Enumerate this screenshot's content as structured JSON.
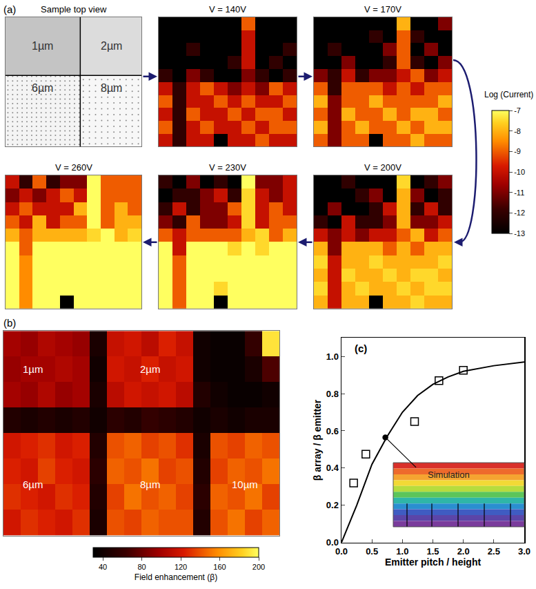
{
  "chart_data": [
    {
      "type": "heatmap",
      "label": "(a)",
      "tick_labels": false,
      "schematic": {
        "title": "Sample top view",
        "regions": [
          "1µm",
          "2µm",
          "6µm",
          "8µm"
        ]
      },
      "panels": [
        {
          "title": "V = 140V",
          "z": [
            [
              -13,
              -13,
              -13,
              -13,
              -13,
              -13,
              -9,
              -13,
              -13,
              -13
            ],
            [
              -13,
              -13,
              -13,
              -13,
              -13,
              -13,
              -10,
              -13,
              -13,
              -13
            ],
            [
              -13,
              -13,
              -12,
              -13,
              -13,
              -13,
              -10,
              -13,
              -13,
              -12
            ],
            [
              -13,
              -13,
              -13,
              -13,
              -13,
              -12,
              -10,
              -13,
              -12,
              -13
            ],
            [
              -12,
              -13,
              -11,
              -12,
              -13,
              -13,
              -11,
              -12,
              -13,
              -12
            ],
            [
              -10,
              -12,
              -10,
              -9,
              -10,
              -11,
              -10,
              -11,
              -9,
              -10
            ],
            [
              -9,
              -12,
              -10,
              -10,
              -9,
              -10,
              -9,
              -10,
              -10,
              -9
            ],
            [
              -10,
              -12,
              -9,
              -10,
              -10,
              -9,
              -10,
              -9,
              -9,
              -10
            ],
            [
              -9,
              -12,
              -10,
              -9,
              -10,
              -10,
              -9,
              -10,
              -9,
              -9
            ],
            [
              -10,
              -12,
              -10,
              -10,
              -13,
              -10,
              -10,
              -9,
              -10,
              -10
            ]
          ]
        },
        {
          "title": "V = 170V",
          "z": [
            [
              -13,
              -13,
              -13,
              -13,
              -13,
              -13,
              -8,
              -13,
              -13,
              -11
            ],
            [
              -13,
              -13,
              -13,
              -13,
              -12,
              -13,
              -9,
              -12,
              -13,
              -13
            ],
            [
              -13,
              -12,
              -13,
              -13,
              -13,
              -11,
              -9,
              -13,
              -11,
              -13
            ],
            [
              -13,
              -13,
              -11,
              -13,
              -13,
              -12,
              -9,
              -12,
              -13,
              -11
            ],
            [
              -11,
              -12,
              -10,
              -12,
              -11,
              -11,
              -10,
              -9,
              -11,
              -10
            ],
            [
              -9,
              -12,
              -9,
              -9,
              -9,
              -10,
              -9,
              -10,
              -9,
              -9
            ],
            [
              -8,
              -11,
              -9,
              -9,
              -8,
              -9,
              -9,
              -9,
              -9,
              -8
            ],
            [
              -9,
              -11,
              -8,
              -9,
              -9,
              -8,
              -9,
              -8,
              -8,
              -9
            ],
            [
              -8,
              -11,
              -9,
              -8,
              -9,
              -9,
              -8,
              -9,
              -8,
              -8
            ],
            [
              -9,
              -11,
              -9,
              -9,
              -13,
              -9,
              -9,
              -8,
              -9,
              -9
            ]
          ]
        },
        {
          "title": "V = 200V",
          "z": [
            [
              -13,
              -13,
              -12,
              -13,
              -13,
              -13,
              -7.5,
              -13,
              -12,
              -11
            ],
            [
              -13,
              -13,
              -13,
              -12,
              -11,
              -13,
              -8,
              -11,
              -13,
              -12
            ],
            [
              -13,
              -11,
              -13,
              -13,
              -12,
              -10,
              -8,
              -12,
              -10,
              -12
            ],
            [
              -12,
              -13,
              -10,
              -12,
              -12,
              -11,
              -8,
              -11,
              -11,
              -10
            ],
            [
              -10,
              -11,
              -10,
              -11,
              -10,
              -10,
              -9,
              -8,
              -10,
              -9
            ],
            [
              -8,
              -11,
              -8,
              -8,
              -8,
              -9,
              -8,
              -9,
              -8,
              -8
            ],
            [
              -7.5,
              -10,
              -8,
              -8,
              -7.5,
              -8,
              -8,
              -8,
              -8,
              -7.5
            ],
            [
              -8,
              -10,
              -7.5,
              -8,
              -8,
              -7.5,
              -8,
              -7.5,
              -7.5,
              -8
            ],
            [
              -7.5,
              -10,
              -8,
              -7.5,
              -8,
              -8,
              -7.5,
              -8,
              -7.5,
              -7.5
            ],
            [
              -8,
              -10,
              -8,
              -8,
              -13,
              -8,
              -8,
              -7.5,
              -8,
              -8
            ]
          ]
        },
        {
          "title": "V = 230V",
          "z": [
            [
              -12,
              -13,
              -11,
              -13,
              -12,
              -13,
              -7,
              -11,
              -11,
              -10
            ],
            [
              -13,
              -12,
              -12,
              -11,
              -10,
              -12,
              -7.5,
              -10,
              -11,
              -10
            ],
            [
              -12,
              -10,
              -12,
              -11,
              -11,
              -9,
              -7.5,
              -10,
              -9,
              -10
            ],
            [
              -11,
              -12,
              -9,
              -11,
              -11,
              -10,
              -7.5,
              -10,
              -9,
              -9
            ],
            [
              -9,
              -10,
              -9,
              -9,
              -9,
              -9,
              -8,
              -7.5,
              -9,
              -8
            ],
            [
              -7,
              -10,
              -7,
              -7,
              -7,
              -7.5,
              -7,
              -7.5,
              -7,
              -7
            ],
            [
              -7,
              -9,
              -7,
              -7,
              -7,
              -7,
              -7,
              -7,
              -7,
              -7
            ],
            [
              -7,
              -9,
              -7,
              -7,
              -7,
              -7,
              -7,
              -7,
              -7,
              -7
            ],
            [
              -7,
              -9,
              -7,
              -7,
              -7.5,
              -7,
              -7,
              -7,
              -7,
              -7
            ],
            [
              -7,
              -9,
              -7,
              -7,
              -13,
              -7,
              -7,
              -7,
              -7,
              -7
            ]
          ]
        },
        {
          "title": "V = 260V",
          "z": [
            [
              -10,
              -12,
              -9,
              -12,
              -11,
              -11,
              -7,
              -9,
              -9,
              -9
            ],
            [
              -11,
              -10,
              -11,
              -10,
              -9,
              -10,
              -7,
              -9,
              -9,
              -9
            ],
            [
              -10,
              -9,
              -10,
              -10,
              -10,
              -8,
              -7,
              -9,
              -8,
              -9
            ],
            [
              -9,
              -10,
              -8,
              -10,
              -9,
              -9,
              -7,
              -9,
              -8,
              -8
            ],
            [
              -8,
              -9,
              -8,
              -8,
              -8,
              -8,
              -7.5,
              -7,
              -8,
              -7.5
            ],
            [
              -7,
              -9,
              -7,
              -7,
              -7,
              -7,
              -7,
              -7,
              -7,
              -7
            ],
            [
              -7,
              -8.5,
              -7,
              -7,
              -7,
              -7,
              -7,
              -7,
              -7,
              -7
            ],
            [
              -7,
              -8.5,
              -7,
              -7,
              -7,
              -7,
              -7,
              -7,
              -7,
              -7
            ],
            [
              -7,
              -8.5,
              -7,
              -7,
              -7,
              -7,
              -7,
              -7,
              -7,
              -7
            ],
            [
              -7,
              -8.5,
              -7,
              -7,
              -13,
              -7,
              -7,
              -7,
              -7,
              -7
            ]
          ]
        }
      ],
      "colorbar": {
        "title": "Log (Current)",
        "range": [
          -13,
          -7
        ],
        "ticks": [
          -13,
          -12,
          -11,
          -10,
          -9,
          -8,
          -7
        ]
      }
    },
    {
      "type": "heatmap",
      "label": "(b)",
      "tick_labels": false,
      "regions": [
        "1µm",
        "2µm",
        "6µm",
        "8µm",
        "10µm"
      ],
      "z": [
        [
          100,
          95,
          105,
          100,
          95,
          45,
          115,
          120,
          110,
          125,
          115,
          40,
          35,
          35,
          60,
          190
        ],
        [
          95,
          100,
          100,
          105,
          100,
          40,
          120,
          115,
          125,
          115,
          120,
          40,
          35,
          35,
          45,
          70
        ],
        [
          100,
          95,
          105,
          95,
          100,
          45,
          110,
          120,
          115,
          120,
          110,
          50,
          40,
          35,
          35,
          40
        ],
        [
          50,
          45,
          50,
          45,
          50,
          40,
          55,
          50,
          60,
          55,
          50,
          40,
          45,
          40,
          45,
          45
        ],
        [
          120,
          125,
          130,
          120,
          125,
          50,
          140,
          145,
          135,
          140,
          130,
          45,
          140,
          135,
          145,
          140
        ],
        [
          125,
          120,
          135,
          125,
          120,
          55,
          145,
          140,
          150,
          135,
          140,
          50,
          135,
          145,
          140,
          150
        ],
        [
          130,
          125,
          120,
          130,
          125,
          50,
          135,
          150,
          140,
          145,
          135,
          55,
          145,
          140,
          150,
          135
        ],
        [
          120,
          130,
          125,
          120,
          130,
          45,
          140,
          135,
          145,
          140,
          140,
          50,
          140,
          150,
          135,
          145
        ]
      ],
      "colorbar": {
        "title": "Field enhancement (β)",
        "range": [
          30,
          200
        ],
        "ticks": [
          40,
          80,
          120,
          160,
          200
        ]
      }
    },
    {
      "type": "line",
      "label": "(c)",
      "xlabel": "Emitter pitch / height",
      "ylabel": "β array / β emitter",
      "xlim": [
        0,
        3
      ],
      "ylim": [
        0,
        1.1
      ],
      "xticks": [
        {
          "value": 0,
          "label": "0.0"
        },
        0.5,
        {
          "value": 1,
          "label": "1.0"
        },
        1.5,
        {
          "value": 2,
          "label": "2.0"
        },
        2.5,
        {
          "value": 3,
          "label": "3.0"
        }
      ],
      "yticks": [
        {
          "value": 0,
          "label": "0.0"
        },
        0.2,
        0.4,
        0.6,
        0.8,
        {
          "value": 1,
          "label": "1.0"
        }
      ],
      "inset": {
        "title": "Simulation"
      },
      "series": [
        {
          "type": "line",
          "color": "#000000",
          "x": [
            0,
            0.25,
            0.5,
            0.75,
            1.0,
            1.25,
            1.5,
            1.75,
            2.0,
            2.5,
            3.0
          ],
          "values": [
            0,
            0.2,
            0.42,
            0.57,
            0.7,
            0.79,
            0.85,
            0.89,
            0.92,
            0.95,
            0.97
          ]
        },
        {
          "type": "scatter",
          "marker": "square-open",
          "color": "#000000",
          "x": [
            0.2,
            0.4,
            1.2,
            1.6,
            2.0
          ],
          "values": [
            0.32,
            0.475,
            0.65,
            0.87,
            0.925
          ]
        },
        {
          "type": "scatter",
          "marker": "circle",
          "color": "#000000",
          "x": [
            0.72
          ],
          "values": [
            0.565
          ]
        }
      ]
    }
  ]
}
